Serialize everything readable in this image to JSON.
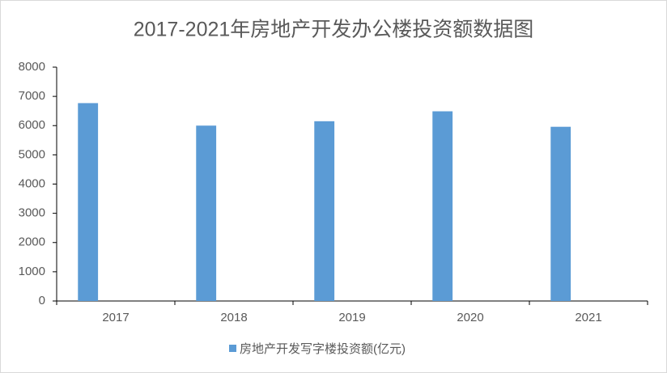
{
  "chart_data": {
    "type": "bar",
    "title": "2017-2021年房地产开发办公楼投资额数据图",
    "categories": [
      "2017",
      "2018",
      "2019",
      "2020",
      "2021"
    ],
    "series": [
      {
        "name": "房地产开发写字楼投资额(亿元)",
        "color": "#5b9bd5",
        "values": [
          6770,
          6000,
          6150,
          6490,
          5960
        ]
      }
    ],
    "ylim": [
      0,
      8000
    ],
    "yticks": [
      0,
      1000,
      2000,
      3000,
      4000,
      5000,
      6000,
      7000,
      8000
    ],
    "legend": "bottom"
  }
}
